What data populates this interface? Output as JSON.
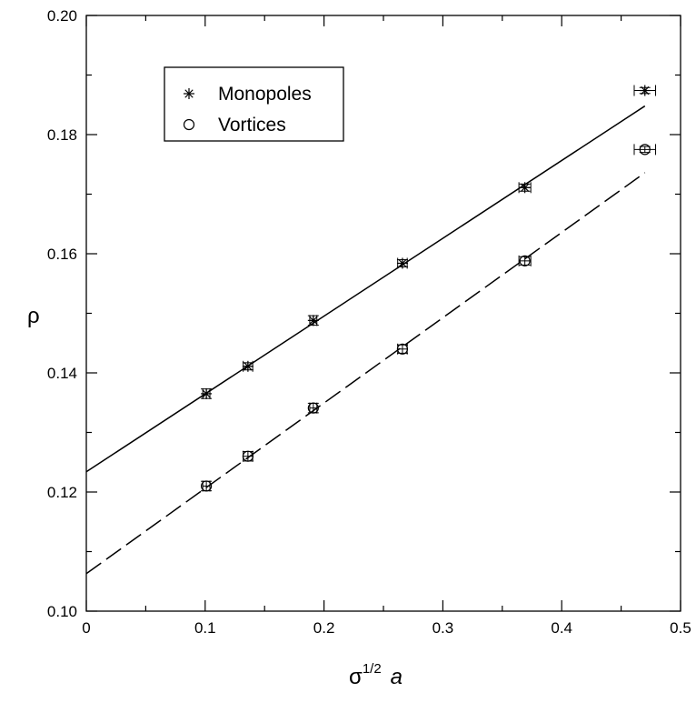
{
  "chart_data": {
    "type": "scatter",
    "title": "",
    "xlabel": "σ",
    "xlabel_sup": "1/2",
    "xlabel_var": "a",
    "ylabel": "ρ",
    "xlim": [
      0,
      0.5
    ],
    "ylim": [
      0.1,
      0.2
    ],
    "x_ticks": [
      "0",
      "0.1",
      "0.2",
      "0.3",
      "0.4",
      "0.5"
    ],
    "y_ticks": [
      "0.10",
      "0.12",
      "0.14",
      "0.16",
      "0.18",
      "0.20"
    ],
    "grid": false,
    "legend_position": "top-left",
    "series": [
      {
        "name": "Monopoles",
        "marker": "asterisk",
        "x": [
          0.101,
          0.136,
          0.191,
          0.266,
          0.369,
          0.47
        ],
        "y": [
          0.1365,
          0.1411,
          0.1488,
          0.1584,
          0.1711,
          0.1874
        ],
        "xerr": [
          0.003,
          0.004,
          0.003,
          0.004,
          0.005,
          0.009
        ],
        "yerr": [
          0.0008,
          0.0006,
          0.0008,
          0.0006,
          0.0006,
          0.0005
        ]
      },
      {
        "name": "Vortices",
        "marker": "circle",
        "x": [
          0.101,
          0.136,
          0.191,
          0.266,
          0.369,
          0.47
        ],
        "y": [
          0.121,
          0.126,
          0.1341,
          0.144,
          0.1588,
          0.1775
        ],
        "xerr": [
          0.003,
          0.004,
          0.003,
          0.004,
          0.005,
          0.009
        ],
        "yerr": [
          0.0008,
          0.0008,
          0.0008,
          0.0007,
          0.0007,
          0.0005
        ]
      }
    ],
    "fits": [
      {
        "series": "Monopoles",
        "style": "solid",
        "x": [
          0,
          0.47
        ],
        "y": [
          0.1234,
          0.1848
        ]
      },
      {
        "series": "Vortices",
        "style": "dashed",
        "x": [
          0,
          0.47
        ],
        "y": [
          0.1063,
          0.1736
        ]
      }
    ]
  }
}
